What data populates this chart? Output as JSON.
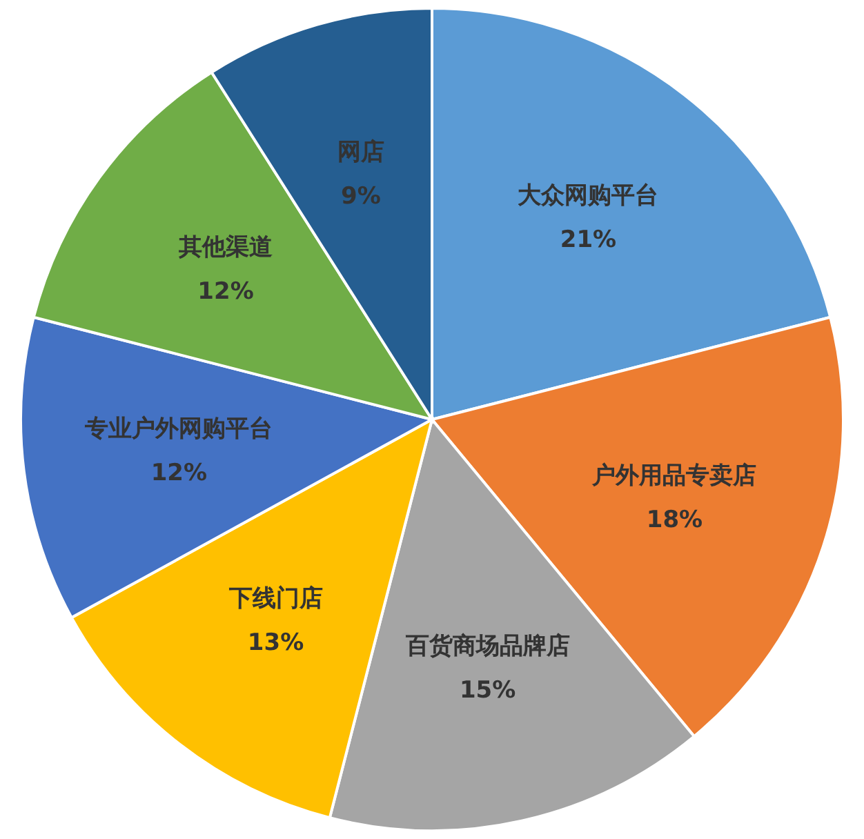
{
  "chart_data": {
    "type": "pie",
    "categories": [
      "大众网购平台",
      "户外用品专卖店",
      "百货商场品牌店",
      "下线门店",
      "专业户外网购平台",
      "其他渠道",
      "网店"
    ],
    "values": [
      21,
      18,
      15,
      13,
      12,
      12,
      9
    ],
    "value_labels": [
      "21%",
      "18%",
      "15%",
      "13%",
      "12%",
      "12%",
      "9%"
    ],
    "colors": [
      "#5b9bd5",
      "#ed7d31",
      "#a5a5a5",
      "#ffc000",
      "#4472c4",
      "#70ad47",
      "#255e91"
    ]
  }
}
